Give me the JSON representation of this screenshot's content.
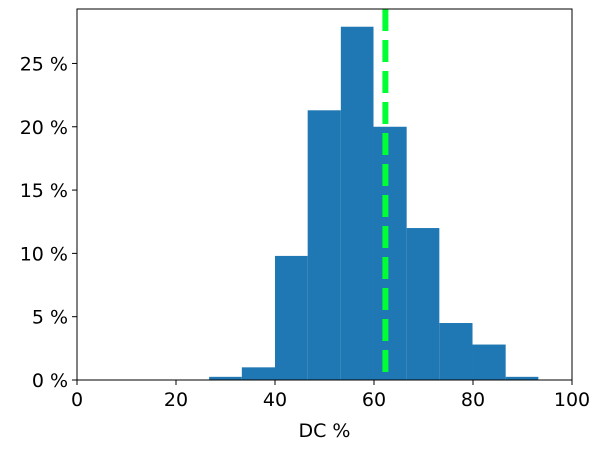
{
  "chart_data": {
    "type": "bar",
    "xlabel": "DC %",
    "ylabel": "",
    "xlim": [
      0,
      100
    ],
    "ylim": [
      0,
      29.3
    ],
    "xticks": [
      0,
      20,
      40,
      60,
      80,
      100
    ],
    "xtick_labels": [
      "0",
      "20",
      "40",
      "60",
      "80",
      "100"
    ],
    "yticks": [
      0,
      5,
      10,
      15,
      20,
      25
    ],
    "ytick_labels": [
      "0 %",
      "5 %",
      "10 %",
      "15 %",
      "20 %",
      "25 %"
    ],
    "bar_color": "#1f77b4",
    "bins": [
      {
        "x0": 26.7,
        "x1": 33.3,
        "value": 0.25
      },
      {
        "x0": 33.3,
        "x1": 40.0,
        "value": 1.0
      },
      {
        "x0": 40.0,
        "x1": 46.6,
        "value": 9.8
      },
      {
        "x0": 46.6,
        "x1": 53.3,
        "value": 21.3
      },
      {
        "x0": 53.3,
        "x1": 59.9,
        "value": 27.9
      },
      {
        "x0": 59.9,
        "x1": 66.6,
        "value": 20.0
      },
      {
        "x0": 66.6,
        "x1": 73.2,
        "value": 12.0
      },
      {
        "x0": 73.2,
        "x1": 79.9,
        "value": 4.5
      },
      {
        "x0": 79.9,
        "x1": 86.6,
        "value": 2.8
      },
      {
        "x0": 86.6,
        "x1": 93.2,
        "value": 0.25
      }
    ],
    "reference_line": {
      "x": 62.3,
      "color": "#00ff33",
      "style": "dashed"
    },
    "grid": false,
    "legend": "none"
  }
}
